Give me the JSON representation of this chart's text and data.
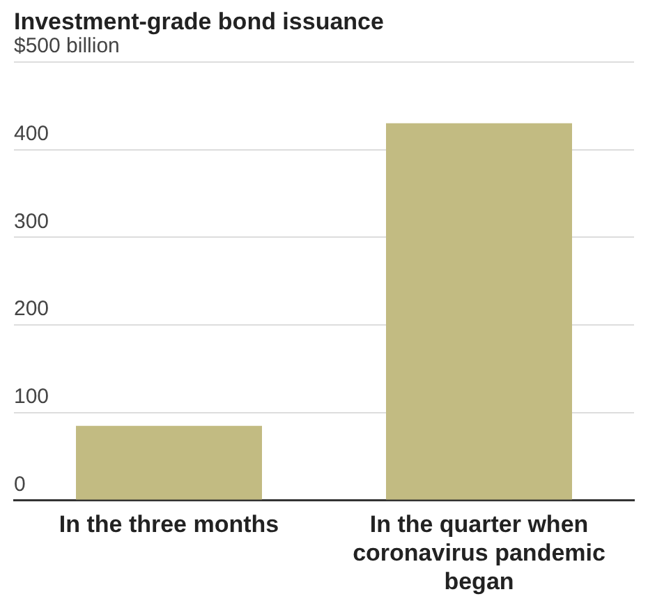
{
  "chart_data": {
    "type": "bar",
    "title": "Investment-grade bond issuance",
    "categories": [
      "In the three months",
      "In the quarter when coronavirus pandemic began"
    ],
    "values": [
      85,
      430
    ],
    "color": "#c2bb82",
    "ylim": [
      0,
      500
    ],
    "yticks": [
      0,
      100,
      200,
      300,
      400,
      {
        "value": 500,
        "label": "$500 billion"
      }
    ],
    "grid": "y",
    "legend": false
  }
}
